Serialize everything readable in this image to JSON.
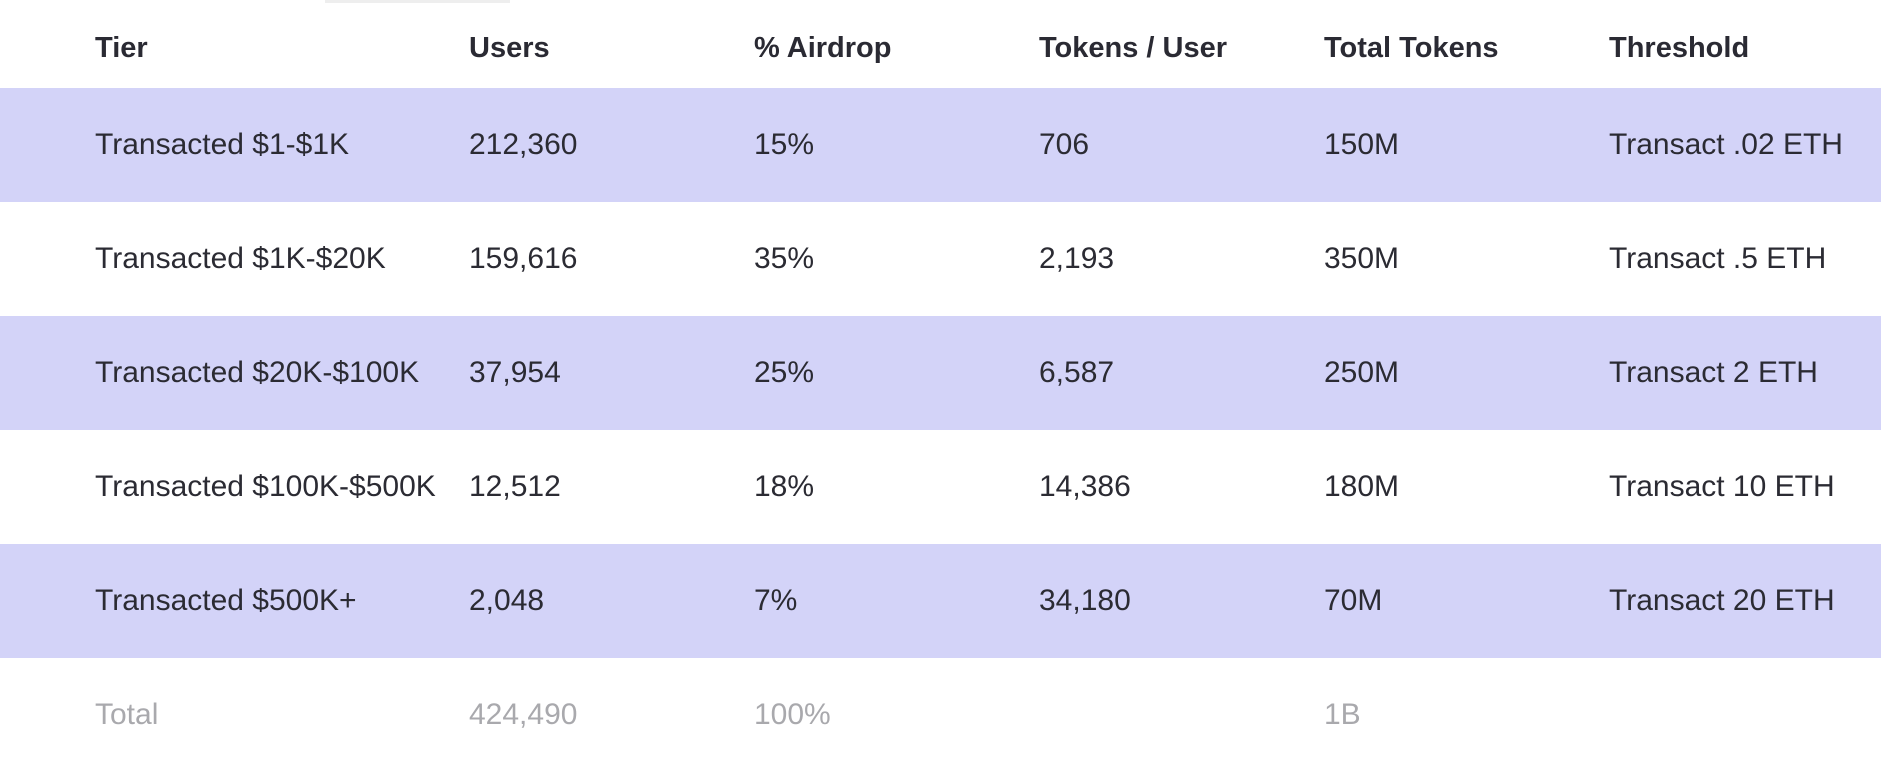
{
  "table": {
    "headers": [
      "Tier",
      "Users",
      "% Airdrop",
      "Tokens / User",
      "Total Tokens",
      "Threshold"
    ],
    "rows": [
      [
        "Transacted $1-$1K",
        "212,360",
        "15%",
        "706",
        "150M",
        "Transact .02 ETH"
      ],
      [
        "Transacted $1K-$20K",
        "159,616",
        "35%",
        "2,193",
        "350M",
        "Transact .5 ETH"
      ],
      [
        "Transacted $20K-$100K",
        "37,954",
        "25%",
        "6,587",
        "250M",
        "Transact 2 ETH"
      ],
      [
        "Transacted $100K-$500K",
        "12,512",
        "18%",
        "14,386",
        "180M",
        "Transact 10 ETH"
      ],
      [
        "Transacted $500K+",
        "2,048",
        "7%",
        "34,180",
        "70M",
        "Transact 20 ETH"
      ]
    ],
    "total": [
      "Total",
      "424,490",
      "100%",
      "",
      "1B",
      ""
    ]
  },
  "colors": {
    "shaded_row": "#d3d3f8",
    "text": "#2b2b33",
    "total_text": "#a9a9ad"
  }
}
